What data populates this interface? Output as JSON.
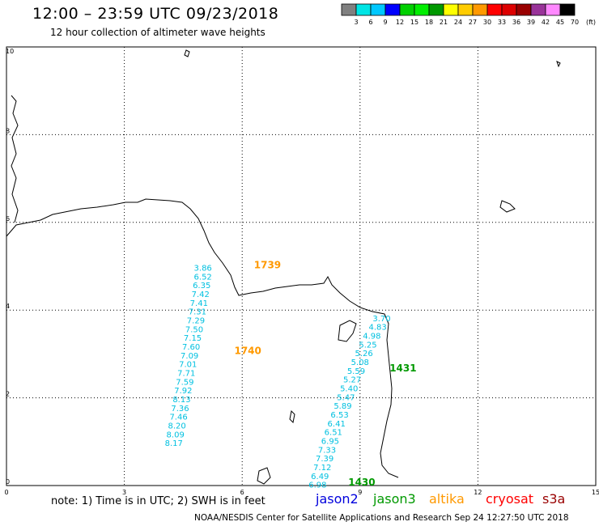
{
  "title": "12:00 – 23:59 UTC 09/23/2018",
  "subtitle": "12 hour collection of altimeter wave heights",
  "legend": {
    "labels": [
      "3",
      "6",
      "9",
      "12",
      "15",
      "18",
      "21",
      "24",
      "27",
      "30",
      "33",
      "36",
      "39",
      "42",
      "45",
      "70",
      "(ft)"
    ],
    "colors": [
      "#808080",
      "#00e5e5",
      "#00c8ff",
      "#0000ff",
      "#00d000",
      "#00ee00",
      "#009900",
      "#ffff00",
      "#ffcc00",
      "#ff9900",
      "#ff0000",
      "#dd0000",
      "#990000",
      "#993399",
      "#ff88ff",
      "#000000"
    ]
  },
  "axes": {
    "x_ticks": [
      "0",
      "3",
      "6",
      "9",
      "12",
      "15"
    ],
    "y_ticks": [
      "10",
      "8",
      "6",
      "4",
      "2",
      "0"
    ]
  },
  "passes": [
    {
      "satellite": "altika",
      "time": "1739",
      "x": 6.3,
      "y": 4.95
    },
    {
      "satellite": "altika",
      "time": "1740",
      "x": 5.8,
      "y": 3.0
    },
    {
      "satellite": "jason3",
      "time": "1431",
      "x": 9.75,
      "y": 2.6
    },
    {
      "satellite": "jason3",
      "time": "1430",
      "x": 8.7,
      "y": 0.0
    }
  ],
  "track_a": {
    "satellite": "altika",
    "color": "#00c0e0",
    "points": [
      {
        "x": 5.0,
        "y": 4.9,
        "v": "3.86"
      },
      {
        "x": 5.0,
        "y": 4.7,
        "v": "6.52"
      },
      {
        "x": 4.97,
        "y": 4.5,
        "v": "6.35"
      },
      {
        "x": 4.94,
        "y": 4.3,
        "v": "7.42"
      },
      {
        "x": 4.9,
        "y": 4.1,
        "v": "7.41"
      },
      {
        "x": 4.86,
        "y": 3.9,
        "v": "7.31"
      },
      {
        "x": 4.82,
        "y": 3.7,
        "v": "7.29"
      },
      {
        "x": 4.78,
        "y": 3.5,
        "v": "7.50"
      },
      {
        "x": 4.74,
        "y": 3.3,
        "v": "7.15"
      },
      {
        "x": 4.7,
        "y": 3.1,
        "v": "7.60"
      },
      {
        "x": 4.66,
        "y": 2.9,
        "v": "7.09"
      },
      {
        "x": 4.62,
        "y": 2.7,
        "v": "7.01"
      },
      {
        "x": 4.58,
        "y": 2.5,
        "v": "7.71"
      },
      {
        "x": 4.54,
        "y": 2.3,
        "v": "7.59"
      },
      {
        "x": 4.5,
        "y": 2.1,
        "v": "7.92"
      },
      {
        "x": 4.46,
        "y": 1.9,
        "v": "8.13"
      },
      {
        "x": 4.42,
        "y": 1.7,
        "v": "7.36"
      },
      {
        "x": 4.38,
        "y": 1.5,
        "v": "7.46"
      },
      {
        "x": 4.34,
        "y": 1.3,
        "v": "8.20"
      },
      {
        "x": 4.3,
        "y": 1.1,
        "v": "8.09"
      },
      {
        "x": 4.26,
        "y": 0.9,
        "v": "8.17"
      }
    ]
  },
  "track_b": {
    "satellite": "jason3",
    "color": "#00c0e0",
    "points": [
      {
        "x": 9.55,
        "y": 3.75,
        "v": "3.70"
      },
      {
        "x": 9.45,
        "y": 3.55,
        "v": "4.83"
      },
      {
        "x": 9.3,
        "y": 3.35,
        "v": "4.98"
      },
      {
        "x": 9.2,
        "y": 3.15,
        "v": "5.25"
      },
      {
        "x": 9.1,
        "y": 2.95,
        "v": "5.26"
      },
      {
        "x": 9.0,
        "y": 2.75,
        "v": "5.08"
      },
      {
        "x": 8.9,
        "y": 2.55,
        "v": "5.59"
      },
      {
        "x": 8.8,
        "y": 2.35,
        "v": "5.27"
      },
      {
        "x": 8.72,
        "y": 2.15,
        "v": "5.40"
      },
      {
        "x": 8.64,
        "y": 1.95,
        "v": "5.47"
      },
      {
        "x": 8.56,
        "y": 1.75,
        "v": "5.89"
      },
      {
        "x": 8.48,
        "y": 1.55,
        "v": "6.53"
      },
      {
        "x": 8.4,
        "y": 1.35,
        "v": "6.41"
      },
      {
        "x": 8.32,
        "y": 1.15,
        "v": "6.51"
      },
      {
        "x": 8.24,
        "y": 0.95,
        "v": "6.95"
      },
      {
        "x": 8.16,
        "y": 0.75,
        "v": "7.33"
      },
      {
        "x": 8.1,
        "y": 0.55,
        "v": "7.39"
      },
      {
        "x": 8.04,
        "y": 0.35,
        "v": "7.12"
      },
      {
        "x": 7.98,
        "y": 0.15,
        "v": "6.49"
      },
      {
        "x": 7.92,
        "y": -0.05,
        "v": "6.98"
      }
    ]
  },
  "note": "note: 1) Time is in UTC; 2) SWH is in feet",
  "satellites": [
    {
      "name": "jason2",
      "color": "#0000dd"
    },
    {
      "name": "jason3",
      "color": "#009900"
    },
    {
      "name": "altika",
      "color": "#ff9900"
    },
    {
      "name": "cryosat",
      "color": "#ff0000"
    },
    {
      "name": "s3a",
      "color": "#990000"
    }
  ],
  "credit": "NOAA/NESDIS Center for Satellite Applications and Research    Sep 24 12:27:50 UTC 2018"
}
